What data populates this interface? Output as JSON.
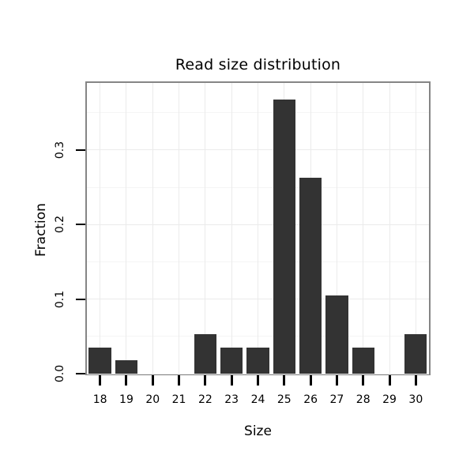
{
  "chart_data": {
    "type": "bar",
    "title": "Read size distribution",
    "xlabel": "Size",
    "ylabel": "Fraction",
    "categories": [
      18,
      19,
      20,
      21,
      22,
      23,
      24,
      25,
      26,
      27,
      28,
      29,
      30
    ],
    "values": [
      0.035,
      0.018,
      0,
      0,
      0.053,
      0.035,
      0.035,
      0.368,
      0.263,
      0.105,
      0.035,
      0,
      0.053
    ],
    "ylim": [
      0,
      0.39
    ],
    "yticks": [
      0.0,
      0.1,
      0.2,
      0.3
    ],
    "grid": true,
    "legend": "none",
    "bar_color": "#333333",
    "panel_border_color": "#858585",
    "grid_major_color": "#ebebeb",
    "grid_minor_color": "#f5f5f5",
    "text_color": "#000000"
  }
}
